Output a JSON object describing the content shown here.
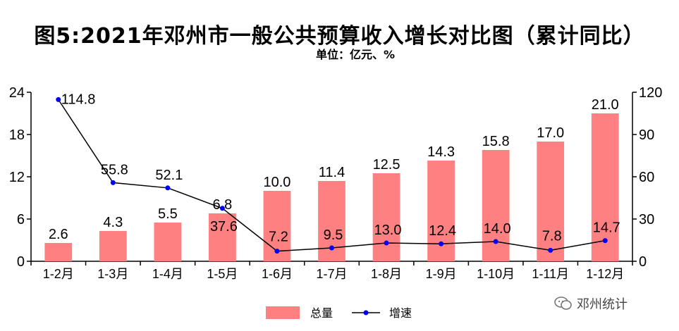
{
  "chart_data": {
    "type": "bar+line",
    "title": "图5:2021年邓州市一般公共预算收入增长对比图（累计同比）",
    "subtitle": "单位：亿元、%",
    "categories": [
      "1-2月",
      "1-3月",
      "1-4月",
      "1-5月",
      "1-6月",
      "1-7月",
      "1-8月",
      "1-9月",
      "1-10月",
      "1-11月",
      "1-12月"
    ],
    "series": [
      {
        "name": "总量",
        "type": "bar",
        "axis": "left",
        "color": "#ff8080",
        "values": [
          2.6,
          4.3,
          5.5,
          6.8,
          10.0,
          11.4,
          12.5,
          14.3,
          15.8,
          17.0,
          21.0
        ],
        "labels": [
          "2.6",
          "4.3",
          "5.5",
          "6.8",
          "10.0",
          "11.4",
          "12.5",
          "14.3",
          "15.8",
          "17.0",
          "21.0"
        ]
      },
      {
        "name": "增速",
        "type": "line",
        "axis": "right",
        "color": "#000000",
        "marker_color": "#0000ff",
        "values": [
          114.8,
          55.8,
          52.1,
          37.6,
          7.2,
          9.5,
          13.0,
          12.4,
          14.0,
          7.8,
          14.7
        ],
        "labels": [
          "114.8",
          "55.8",
          "52.1",
          "37.6",
          "7.2",
          "9.5",
          "13.0",
          "12.4",
          "14.0",
          "7.8",
          "14.7"
        ]
      }
    ],
    "y_left": {
      "min": 0,
      "max": 24,
      "ticks": [
        "0",
        "6",
        "12",
        "18",
        "24"
      ]
    },
    "y_right": {
      "min": 0,
      "max": 120,
      "ticks": [
        "0",
        "30",
        "60",
        "90",
        "120"
      ]
    },
    "grid": false,
    "legend": "bottom-center"
  },
  "watermark": "邓州统计"
}
